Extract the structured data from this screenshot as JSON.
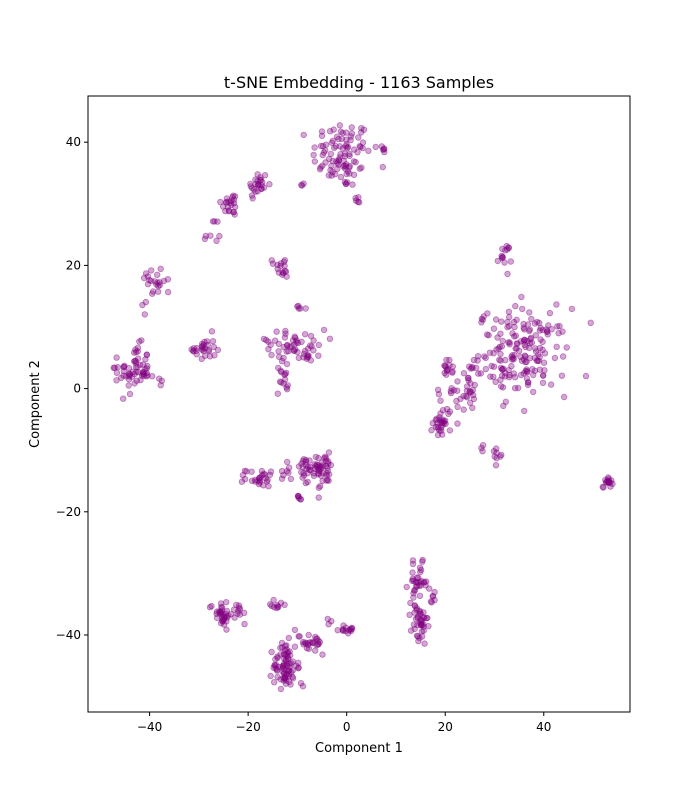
{
  "chart_data": {
    "type": "scatter",
    "title": "t-SNE Embedding - 1163 Samples",
    "xlabel": "Component 1",
    "ylabel": "Component 2",
    "xlim": [
      -52.5,
      57.5
    ],
    "ylim": [
      -52.5,
      47.5
    ],
    "xticks": [
      -40,
      -20,
      0,
      20,
      40
    ],
    "yticks": [
      -40,
      -20,
      0,
      20,
      40
    ],
    "xtick_labels": [
      "−40",
      "−20",
      "0",
      "20",
      "40"
    ],
    "ytick_labels": [
      "−40",
      "−20",
      "0",
      "20",
      "40"
    ],
    "grid": false,
    "marker_color": "#800080",
    "marker_alpha": 0.35,
    "sample_count": 1163,
    "clusters": [
      {
        "cx": -1,
        "cy": 38,
        "sx": 3.0,
        "sy": 2.8,
        "n": 95
      },
      {
        "cx": 7.5,
        "cy": 39,
        "sx": 0.4,
        "sy": 0.5,
        "n": 6
      },
      {
        "cx": 2,
        "cy": 30.5,
        "sx": 0.5,
        "sy": 0.6,
        "n": 5
      },
      {
        "cx": -9,
        "cy": 33,
        "sx": 0.3,
        "sy": 0.3,
        "n": 3
      },
      {
        "cx": -18,
        "cy": 33,
        "sx": 1.0,
        "sy": 1.2,
        "n": 25
      },
      {
        "cx": -23.5,
        "cy": 30,
        "sx": 1.0,
        "sy": 1.0,
        "n": 22
      },
      {
        "cx": -27.5,
        "cy": 25,
        "sx": 1.2,
        "sy": 1.5,
        "n": 8
      },
      {
        "cx": -38.5,
        "cy": 17.5,
        "sx": 1.6,
        "sy": 1.3,
        "n": 22
      },
      {
        "cx": -41,
        "cy": 14,
        "sx": 0.3,
        "sy": 0.3,
        "n": 2
      },
      {
        "cx": -43,
        "cy": 3,
        "sx": 1.5,
        "sy": 2.0,
        "n": 55
      },
      {
        "cx": -38.5,
        "cy": 1.5,
        "sx": 1.2,
        "sy": 0.5,
        "n": 6
      },
      {
        "cx": -47,
        "cy": 3,
        "sx": 0.3,
        "sy": 0.4,
        "n": 4
      },
      {
        "cx": -29,
        "cy": 6.5,
        "sx": 1.2,
        "sy": 1.2,
        "n": 28
      },
      {
        "cx": -13.5,
        "cy": 20.5,
        "sx": 0.8,
        "sy": 0.7,
        "n": 8
      },
      {
        "cx": -12.5,
        "cy": 18.8,
        "sx": 0.5,
        "sy": 0.6,
        "n": 8
      },
      {
        "cx": -10,
        "cy": 13,
        "sx": 0.8,
        "sy": 0.2,
        "n": 5
      },
      {
        "cx": -10,
        "cy": 7,
        "sx": 2.8,
        "sy": 1.3,
        "n": 50
      },
      {
        "cx": -13,
        "cy": 1.5,
        "sx": 0.6,
        "sy": 1.3,
        "n": 14
      },
      {
        "cx": -8,
        "cy": 5,
        "sx": 0.4,
        "sy": 0.3,
        "n": 3
      },
      {
        "cx": 32,
        "cy": 21.5,
        "sx": 0.7,
        "sy": 1.0,
        "n": 14
      },
      {
        "cx": 36,
        "cy": 6,
        "sx": 4.5,
        "sy": 3.5,
        "n": 165
      },
      {
        "cx": 20.5,
        "cy": 3.2,
        "sx": 0.5,
        "sy": 0.7,
        "n": 14
      },
      {
        "cx": 23.5,
        "cy": -0.5,
        "sx": 1.5,
        "sy": 1.5,
        "n": 30
      },
      {
        "cx": 19.5,
        "cy": -5.5,
        "sx": 1.0,
        "sy": 1.3,
        "n": 30
      },
      {
        "cx": 27.5,
        "cy": -9.5,
        "sx": 0.3,
        "sy": 0.3,
        "n": 3
      },
      {
        "cx": 30.5,
        "cy": -10.5,
        "sx": 0.4,
        "sy": 0.5,
        "n": 8
      },
      {
        "cx": -17.5,
        "cy": -14.5,
        "sx": 1.5,
        "sy": 0.7,
        "n": 28
      },
      {
        "cx": -12,
        "cy": -13.5,
        "sx": 0.6,
        "sy": 0.6,
        "n": 5
      },
      {
        "cx": -8,
        "cy": -13.5,
        "sx": 1.7,
        "sy": 1.4,
        "n": 40
      },
      {
        "cx": -4.5,
        "cy": -13,
        "sx": 1.2,
        "sy": 1.2,
        "n": 25
      },
      {
        "cx": -9.5,
        "cy": -17.8,
        "sx": 0.6,
        "sy": 0.2,
        "n": 6
      },
      {
        "cx": -5.5,
        "cy": -16,
        "sx": 0.3,
        "sy": 0.3,
        "n": 2
      },
      {
        "cx": 53,
        "cy": -15,
        "sx": 0.5,
        "sy": 0.5,
        "n": 16
      },
      {
        "cx": 14.5,
        "cy": -31.5,
        "sx": 1.0,
        "sy": 1.5,
        "n": 35
      },
      {
        "cx": 14.8,
        "cy": -38.5,
        "sx": 0.8,
        "sy": 1.8,
        "n": 40
      },
      {
        "cx": 17.5,
        "cy": -34,
        "sx": 0.4,
        "sy": 1.5,
        "n": 6
      },
      {
        "cx": -25.5,
        "cy": -36.5,
        "sx": 1.2,
        "sy": 1.0,
        "n": 35
      },
      {
        "cx": -21.5,
        "cy": -36,
        "sx": 0.6,
        "sy": 1.1,
        "n": 10
      },
      {
        "cx": -14,
        "cy": -35,
        "sx": 0.8,
        "sy": 0.6,
        "n": 10
      },
      {
        "cx": -12.5,
        "cy": -45,
        "sx": 1.2,
        "sy": 1.7,
        "n": 75
      },
      {
        "cx": -7.5,
        "cy": -41.5,
        "sx": 1.8,
        "sy": 0.9,
        "n": 30
      },
      {
        "cx": 0,
        "cy": -39,
        "sx": 0.8,
        "sy": 0.4,
        "n": 14
      },
      {
        "cx": -9,
        "cy": -48,
        "sx": 0.2,
        "sy": 0.2,
        "n": 2
      },
      {
        "cx": -3.5,
        "cy": -38,
        "sx": 0.3,
        "sy": 0.3,
        "n": 3
      },
      {
        "cx": -16,
        "cy": 7.5,
        "sx": 0.4,
        "sy": 0.5,
        "n": 4
      },
      {
        "cx": 25,
        "cy": 3.5,
        "sx": 1.0,
        "sy": 0.3,
        "n": 4
      },
      {
        "cx": 27.5,
        "cy": 11,
        "sx": 0.4,
        "sy": 0.4,
        "n": 3
      },
      {
        "cx": 30.5,
        "cy": 2,
        "sx": 2.5,
        "sy": 1.0,
        "n": 8
      },
      {
        "cx": 18.5,
        "cy": -1,
        "sx": 0.5,
        "sy": 0.6,
        "n": 3
      }
    ]
  }
}
